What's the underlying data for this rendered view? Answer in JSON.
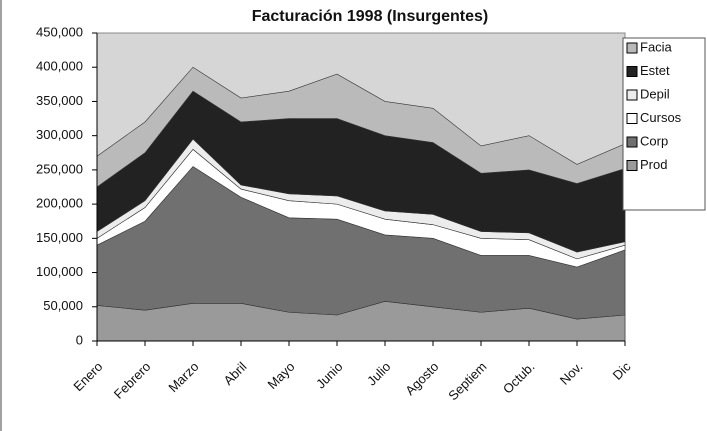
{
  "chart_data": {
    "type": "stacked_area",
    "title": "Facturación 1998 (Insurgentes)",
    "categories": [
      "Enero",
      "Febrero",
      "Marzo",
      "Abril",
      "Mayo",
      "Junio",
      "Julio",
      "Agosto",
      "Septiem",
      "Octub.",
      "Nov.",
      "Dic"
    ],
    "series": [
      {
        "name": "Prod",
        "color": "#9a9a9a",
        "values": [
          52000,
          45000,
          55000,
          55000,
          42000,
          38000,
          58000,
          50000,
          42000,
          48000,
          32000,
          38000
        ]
      },
      {
        "name": "Corp",
        "color": "#707070",
        "values": [
          88000,
          130000,
          200000,
          155000,
          138000,
          140000,
          97000,
          100000,
          83000,
          77000,
          76000,
          95000
        ]
      },
      {
        "name": "Cursos",
        "color": "#ffffff",
        "values": [
          10000,
          20000,
          25000,
          12000,
          25000,
          22000,
          23000,
          20000,
          25000,
          23000,
          12000,
          7000
        ]
      },
      {
        "name": "Depil",
        "color": "#ececec",
        "values": [
          10000,
          10000,
          15000,
          6000,
          10000,
          12000,
          12000,
          15000,
          10000,
          10000,
          10000,
          5000
        ]
      },
      {
        "name": "Estet",
        "color": "#222222",
        "values": [
          65000,
          70000,
          70000,
          92000,
          110000,
          113000,
          110000,
          105000,
          85000,
          92000,
          100000,
          107000
        ]
      },
      {
        "name": "Facia",
        "color": "#bababa",
        "values": [
          45000,
          45000,
          35000,
          35000,
          40000,
          65000,
          50000,
          50000,
          40000,
          50000,
          28000,
          36000
        ]
      }
    ],
    "ylim": [
      0,
      450000
    ],
    "yticks": [
      0,
      {
        "value": 50000,
        "label": "50,000"
      },
      {
        "value": 100000,
        "label": "100,000"
      },
      {
        "value": 150000,
        "label": "150,000"
      },
      {
        "value": 200000,
        "label": "200,000"
      },
      {
        "value": 250000,
        "label": "250,000"
      },
      {
        "value": 300000,
        "label": "300,000"
      },
      {
        "value": 350000,
        "label": "350,000"
      },
      {
        "value": 400000,
        "label": "400,000"
      },
      {
        "value": 450000,
        "label": "450,000"
      }
    ],
    "legend": "right"
  }
}
